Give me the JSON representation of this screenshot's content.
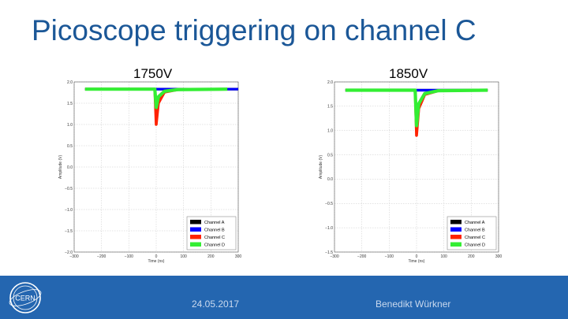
{
  "slide": {
    "title": "Picoscope triggering on channel C",
    "footer_date": "24.05.2017",
    "footer_author": "Benedikt Würkner",
    "logo_text": "CERN"
  },
  "colors": {
    "title": "#1b5797",
    "footer_bar": "#2466b0",
    "channel_a": "#000000",
    "channel_b": "#0000ff",
    "channel_c": "#ff2200",
    "channel_d": "#33ee33"
  },
  "chart_data": [
    {
      "type": "line",
      "title": "1750V",
      "xlabel": "Time (ns)",
      "ylabel": "Amplitude (V)",
      "xlim": [
        -300,
        300
      ],
      "ylim": [
        -2.0,
        2.0
      ],
      "xticks": [
        -300,
        -200,
        -100,
        0,
        100,
        200,
        300
      ],
      "yticks": [
        -2.0,
        -1.5,
        -1.0,
        -0.5,
        0.0,
        0.5,
        1.0,
        1.5,
        2.0
      ],
      "grid": true,
      "legend_position": "bottom-right",
      "series": [
        {
          "name": "Channel A",
          "color": "#000000",
          "x": [
            -260,
            0,
            300
          ],
          "y": [
            1.83,
            1.83,
            1.83
          ]
        },
        {
          "name": "Channel B",
          "color": "#0000ff",
          "x": [
            -260,
            0,
            300
          ],
          "y": [
            1.83,
            1.83,
            1.83
          ]
        },
        {
          "name": "Channel C",
          "color": "#ff2200",
          "x": [
            -260,
            -5,
            0,
            8,
            30,
            80,
            260
          ],
          "y": [
            1.83,
            1.83,
            1.0,
            1.5,
            1.76,
            1.82,
            1.83
          ]
        },
        {
          "name": "Channel D",
          "color": "#33ee33",
          "x": [
            -260,
            -5,
            0,
            8,
            30,
            80,
            260
          ],
          "y": [
            1.83,
            1.83,
            1.4,
            1.65,
            1.78,
            1.82,
            1.83
          ]
        }
      ]
    },
    {
      "type": "line",
      "title": "1850V",
      "xlabel": "Time (ns)",
      "ylabel": "Amplitude (V)",
      "xlim": [
        -300,
        300
      ],
      "ylim": [
        -1.5,
        2.0
      ],
      "xticks": [
        -300,
        -200,
        -100,
        0,
        100,
        200,
        300
      ],
      "yticks": [
        -1.5,
        -1.0,
        -0.5,
        0.0,
        0.5,
        1.0,
        1.5,
        2.0
      ],
      "grid": true,
      "legend_position": "bottom-right",
      "series": [
        {
          "name": "Channel A",
          "color": "#000000",
          "x": [
            -260,
            0,
            260
          ],
          "y": [
            1.83,
            1.83,
            1.83
          ]
        },
        {
          "name": "Channel B",
          "color": "#0000ff",
          "x": [
            -260,
            0,
            260
          ],
          "y": [
            1.83,
            1.83,
            1.83
          ]
        },
        {
          "name": "Channel C",
          "color": "#ff2200",
          "x": [
            -260,
            -5,
            0,
            8,
            30,
            80,
            260
          ],
          "y": [
            1.83,
            1.83,
            0.9,
            1.45,
            1.74,
            1.82,
            1.83
          ]
        },
        {
          "name": "Channel D",
          "color": "#33ee33",
          "x": [
            -260,
            -5,
            0,
            8,
            30,
            80,
            260
          ],
          "y": [
            1.83,
            1.83,
            1.1,
            1.55,
            1.76,
            1.82,
            1.83
          ]
        }
      ]
    }
  ]
}
